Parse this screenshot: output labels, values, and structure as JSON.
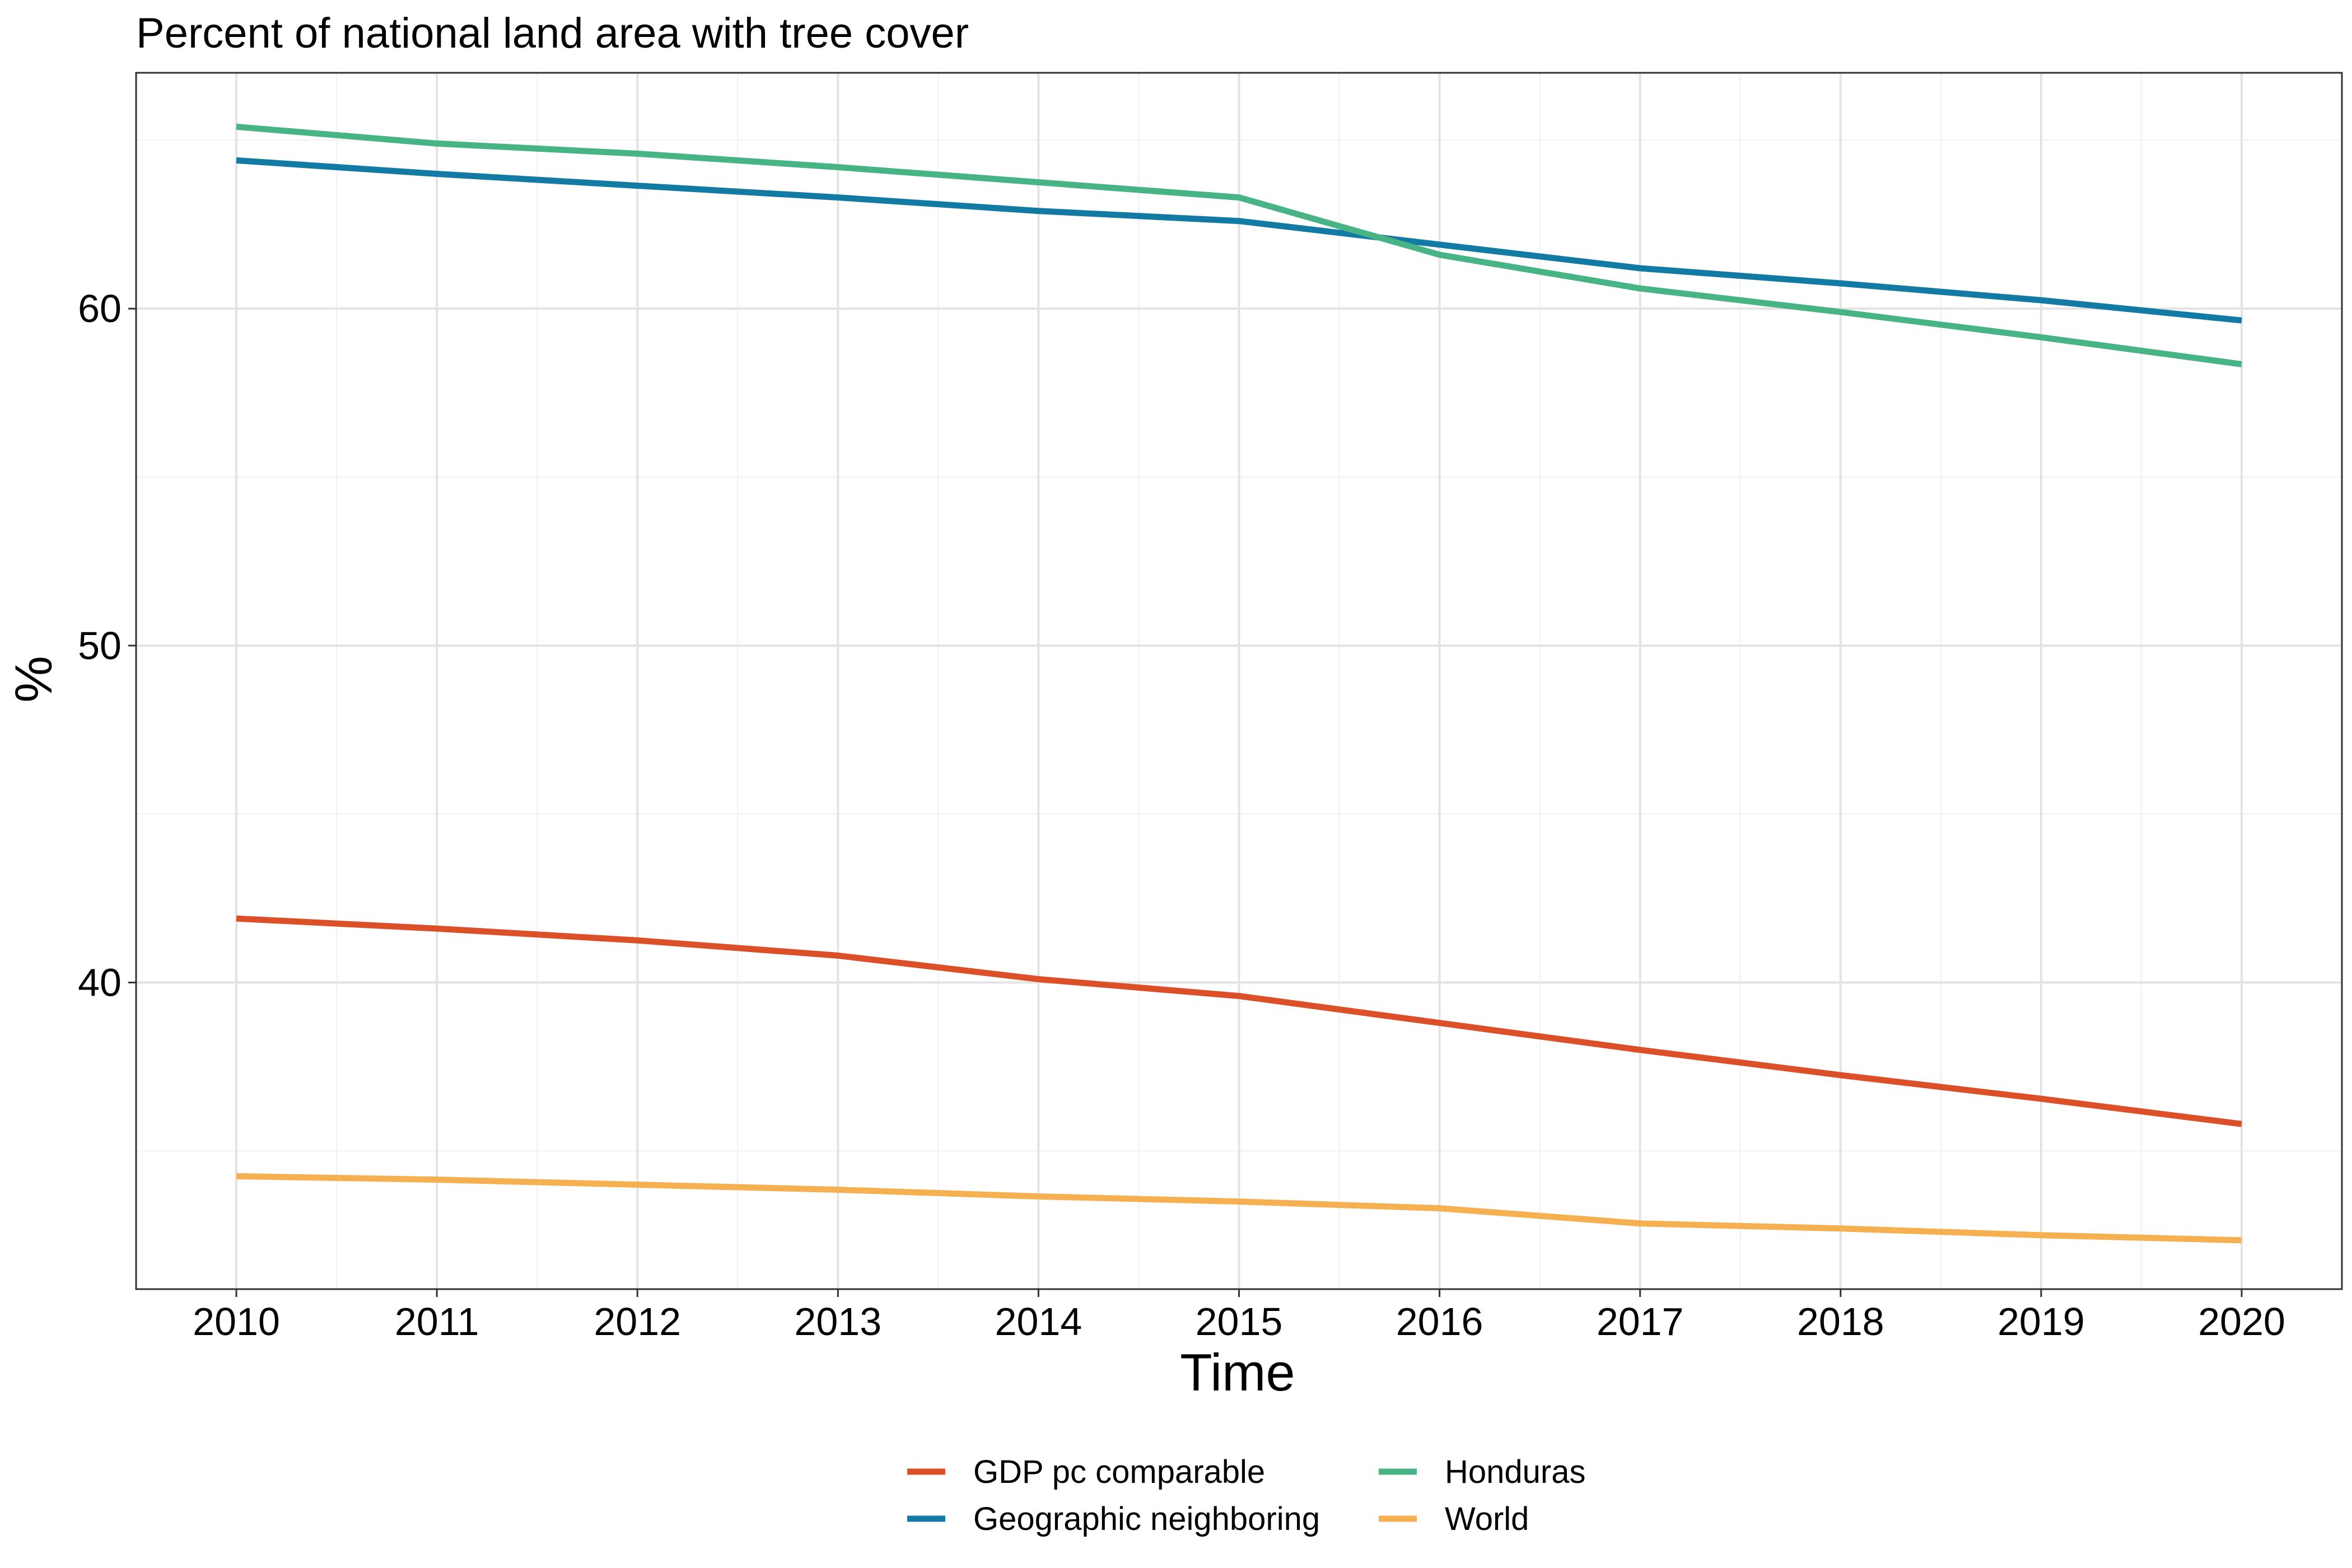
{
  "chart_data": {
    "type": "line",
    "title": "Percent of national land area with tree cover",
    "xlabel": "Time",
    "ylabel": "%",
    "x": [
      2010,
      2011,
      2012,
      2013,
      2014,
      2015,
      2016,
      2017,
      2018,
      2019,
      2020
    ],
    "xlim": [
      2009.5,
      2020.5
    ],
    "ylim": [
      30.9,
      67.0
    ],
    "yticks": [
      40,
      50,
      60
    ],
    "y_minor_ticks": [
      35,
      45,
      55,
      65
    ],
    "grid": true,
    "legend_position": "bottom",
    "series": [
      {
        "name": "GDP pc comparable",
        "color": "#dc5029",
        "values": [
          41.9,
          41.6,
          41.25,
          40.8,
          40.1,
          39.6,
          38.8,
          38.0,
          37.25,
          36.55,
          35.8
        ]
      },
      {
        "name": "Geographic neighboring",
        "color": "#137aa3",
        "values": [
          64.4,
          64.0,
          63.65,
          63.3,
          62.9,
          62.6,
          61.9,
          61.2,
          60.75,
          60.25,
          59.65
        ]
      },
      {
        "name": "Honduras",
        "color": "#48b384",
        "values": [
          65.4,
          64.9,
          64.6,
          64.2,
          63.75,
          63.3,
          61.6,
          60.6,
          59.9,
          59.15,
          58.35
        ]
      },
      {
        "name": "World",
        "color": "#f5b151",
        "values": [
          34.25,
          34.15,
          34.0,
          33.85,
          33.65,
          33.5,
          33.3,
          32.85,
          32.7,
          32.5,
          32.35
        ]
      }
    ]
  }
}
